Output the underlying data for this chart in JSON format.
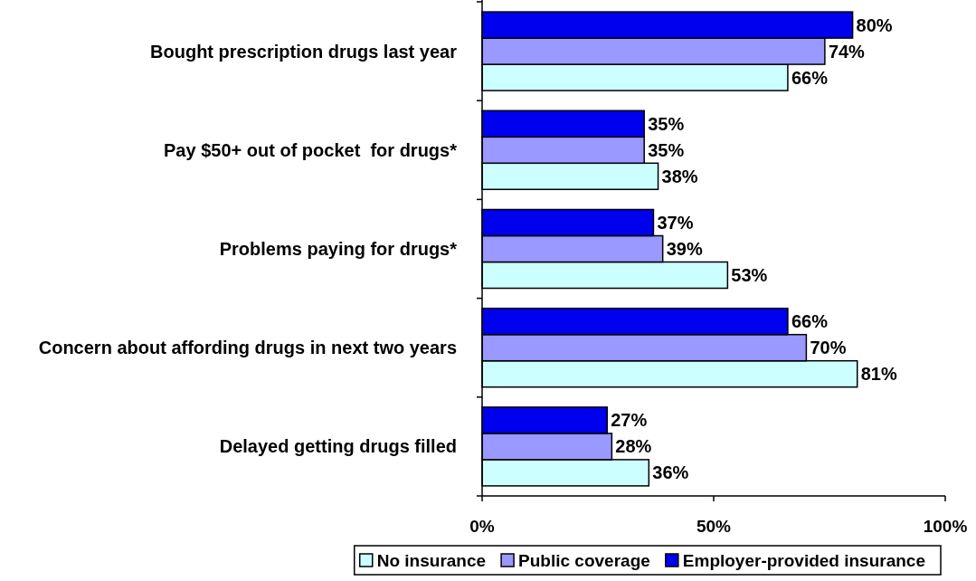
{
  "chart_data": {
    "type": "bar",
    "orientation": "horizontal",
    "categories": [
      "Bought prescription drugs last year",
      "Pay $50+ out of pocket  for drugs*",
      "Problems paying for drugs*",
      "Concern about affording drugs in next two years",
      "Delayed getting drugs filled"
    ],
    "series": [
      {
        "name": "No insurance",
        "color": "#ccffff",
        "values": [
          66,
          38,
          53,
          81,
          36
        ],
        "value_labels": [
          "66%",
          "38%",
          "53%",
          "81%",
          "36%"
        ]
      },
      {
        "name": "Public coverage",
        "color": "#9999ff",
        "values": [
          74,
          35,
          39,
          70,
          28
        ],
        "value_labels": [
          "74%",
          "35%",
          "39%",
          "70%",
          "28%"
        ]
      },
      {
        "name": "Employer-provided insurance",
        "color": "#0000ee",
        "values": [
          80,
          35,
          37,
          66,
          27
        ],
        "value_labels": [
          "80%",
          "35%",
          "37%",
          "66%",
          "27%"
        ]
      }
    ],
    "xlim": [
      0,
      100
    ],
    "xticks": [
      {
        "value": 0,
        "label": "0%"
      },
      {
        "value": 50,
        "label": "50%"
      },
      {
        "value": 100,
        "label": "100%"
      }
    ],
    "grid": false,
    "legend": "bottom"
  }
}
